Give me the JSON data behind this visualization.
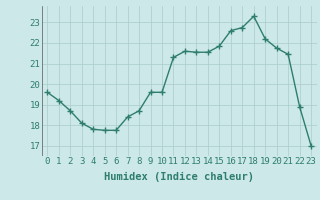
{
  "x": [
    0,
    1,
    2,
    3,
    4,
    5,
    6,
    7,
    8,
    9,
    10,
    11,
    12,
    13,
    14,
    15,
    16,
    17,
    18,
    19,
    20,
    21,
    22,
    23
  ],
  "y": [
    19.6,
    19.2,
    18.7,
    18.1,
    17.8,
    17.75,
    17.75,
    18.4,
    18.7,
    19.6,
    19.6,
    21.3,
    21.6,
    21.55,
    21.55,
    21.85,
    22.6,
    22.75,
    23.3,
    22.2,
    21.75,
    21.45,
    18.9,
    17.0
  ],
  "line_color": "#2e7d6e",
  "marker": "+",
  "marker_size": 4,
  "marker_linewidth": 1.0,
  "line_width": 1.0,
  "bg_color": "#cce8e8",
  "grid_color": "#aacccc",
  "ylabel_ticks": [
    17,
    18,
    19,
    20,
    21,
    22,
    23
  ],
  "xlabel": "Humidex (Indice chaleur)",
  "xlim": [
    -0.5,
    23.5
  ],
  "ylim": [
    16.5,
    23.8
  ],
  "xlabel_fontsize": 7.5,
  "tick_fontsize": 6.5,
  "tick_color": "#2e7d6e",
  "label_color": "#2e7d6e"
}
